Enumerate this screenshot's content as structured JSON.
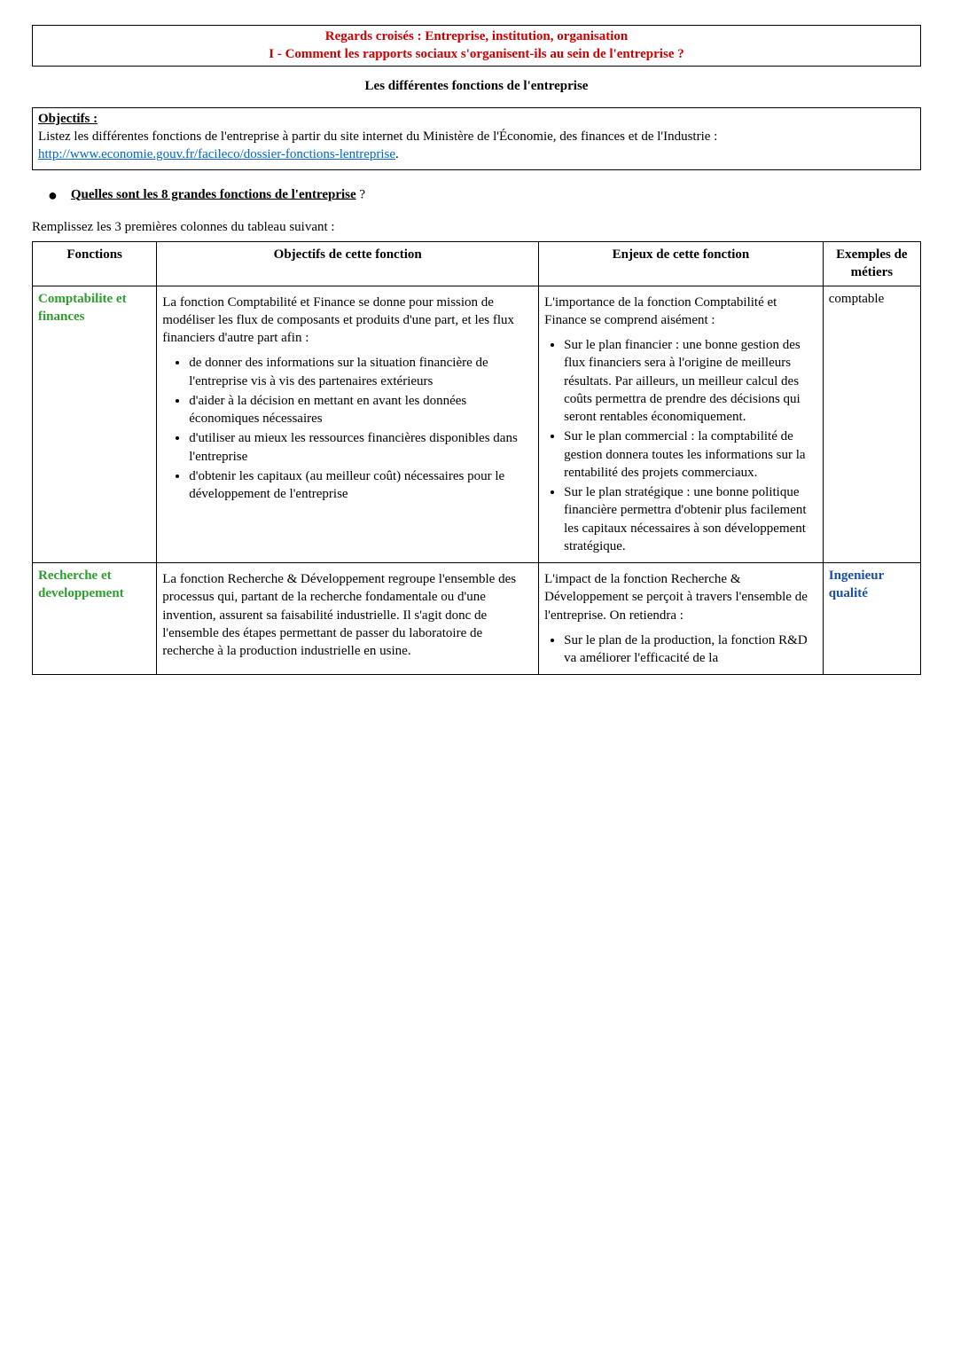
{
  "header": {
    "line1": "Regards croisés : Entreprise, institution, organisation",
    "line2": "I - Comment les rapports sociaux s'organisent-ils au sein de l'entreprise ?",
    "colors": {
      "text": "#cc0000"
    }
  },
  "subtitle": "Les différentes fonctions de l'entreprise",
  "objectifs": {
    "title": "Objectifs :",
    "text_pre": "Listez les différentes fonctions de l'entreprise à partir du site internet du Ministère de l'Économie, des finances et de l'Industrie : ",
    "link": "http://www.economie.gouv.fr/facileco/dossier-fonctions-lentreprise",
    "text_post": "."
  },
  "section_question": {
    "bullet": "●",
    "text": "Quelles sont les 8 grandes fonctions de l'entreprise",
    "suffix": " ?"
  },
  "fill_instruction": "Remplissez les 3 premières colonnes du tableau suivant :",
  "table": {
    "columns": [
      "Fonctions",
      "Objectifs de cette fonction",
      "Enjeux de cette fonction",
      "Exemples de métiers"
    ],
    "rows": [
      {
        "fonction": {
          "label": "Comptabilite et finances",
          "color": "#2e9e2e"
        },
        "objectifs": {
          "para": "La fonction Comptabilité et Finance se donne pour mission de modéliser les flux de composants et produits d'une part, et les flux financiers d'autre part afin :",
          "bullets": [
            "de donner des informations sur la situation financière de l'entreprise vis à vis des partenaires extérieurs",
            "d'aider à la décision en mettant en avant les données économiques nécessaires",
            " d'utiliser au mieux les ressources financières disponibles dans l'entreprise",
            " d'obtenir les capitaux (au meilleur coût) nécessaires pour le développement de l'entreprise"
          ]
        },
        "enjeux": {
          "para": "L'importance de la fonction Comptabilité et Finance se comprend aisément :",
          "bullets": [
            "Sur le plan financier : une bonne gestion des flux financiers sera à l'origine de meilleurs résultats. Par ailleurs, un meilleur calcul des coûts permettra de prendre des décisions qui seront rentables économiquement.",
            "Sur le plan commercial : la comptabilité de gestion donnera toutes les informations sur la rentabilité des projets commerciaux.",
            "Sur le plan stratégique : une bonne politique financière permettra d'obtenir plus facilement les capitaux nécessaires à son développement stratégique."
          ]
        },
        "exemple": "comptable"
      },
      {
        "fonction": {
          "label": "Recherche et developpement",
          "color": "#2e9e2e"
        },
        "objectifs": {
          "para": "La fonction Recherche & Développement regroupe l'ensemble des processus qui, partant de la recherche fondamentale ou d'une invention, assurent sa faisabilité industrielle. Il s'agit donc de l'ensemble des étapes permettant de passer du laboratoire de recherche à la production industrielle en usine.",
          "bullets": []
        },
        "enjeux": {
          "para": "L'impact de la fonction Recherche & Développement se perçoit à travers l'ensemble de l'entreprise. On retiendra :",
          "bullets": [
            "Sur le plan de la production, la fonction R&D va améliorer l'efficacité de la"
          ]
        },
        "exemple": "Ingenieur qualité",
        "exemple_color": "#1a4fa3"
      }
    ]
  }
}
